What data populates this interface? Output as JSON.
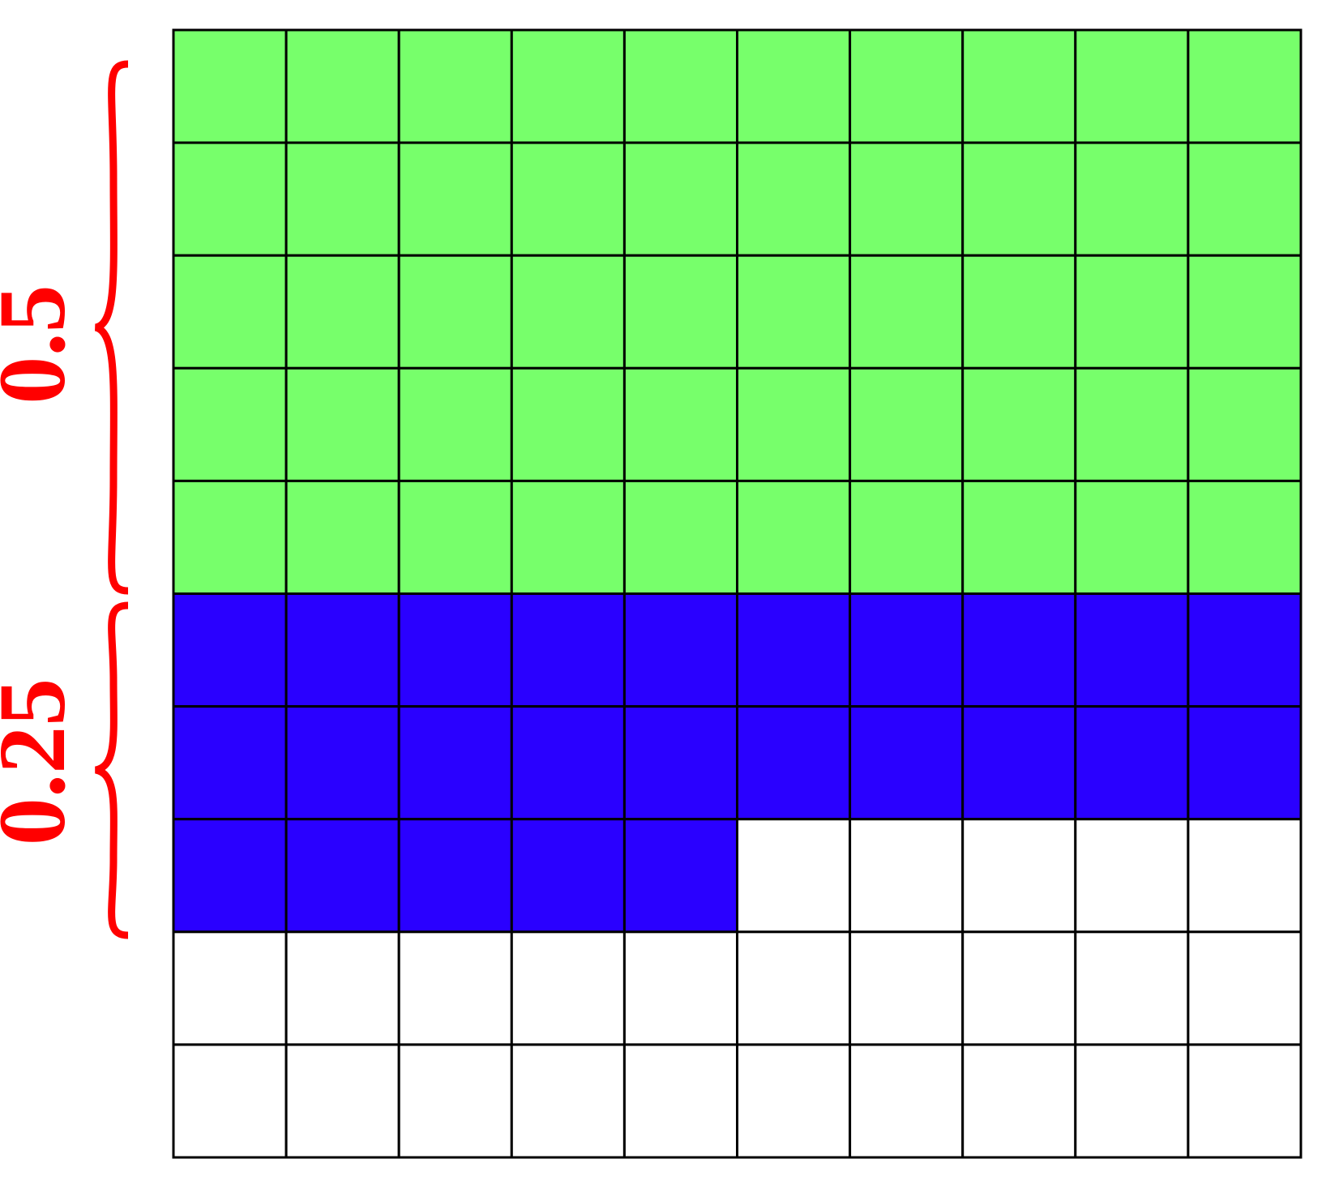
{
  "annotations": {
    "green": "0.5",
    "blue": "0.25"
  }
}
